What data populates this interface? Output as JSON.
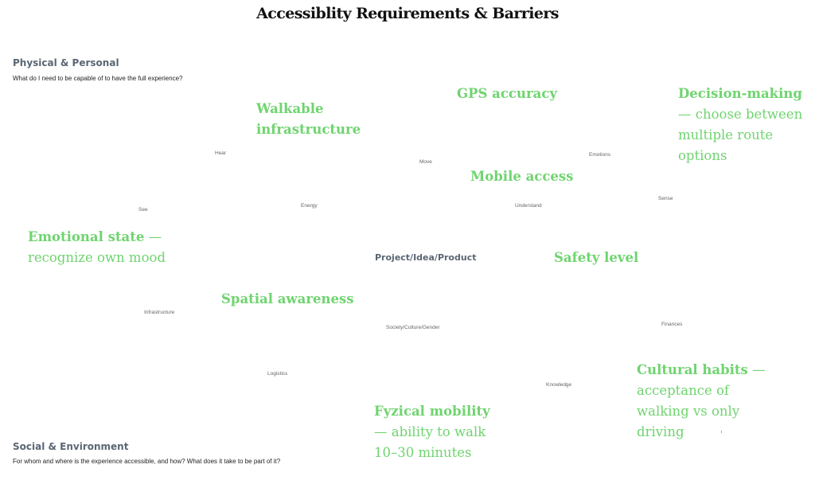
{
  "title": "Accessiblity Requirements & Barriers",
  "physical": {
    "heading": "Physical & Personal",
    "question": "What do I need to be capable of to have the full experience?"
  },
  "social": {
    "heading": "Social & Environment",
    "question": "For whom and where is the experience accessible, and how? What does it take to be part of it?"
  },
  "center": "Project/Idea/Product",
  "dimensions": {
    "hear": "Hear",
    "move": "Move",
    "emotions": "Emotions",
    "see": "See",
    "energy": "Energy",
    "understand": "Understand",
    "sense": "Sense",
    "infrastructure": "Infrastructure",
    "society": "Society/Culture/Gender",
    "finances": "Finances",
    "logistics": "Logistics",
    "knowledge": "Knowledge"
  },
  "notes": {
    "walkable": {
      "bold": "Walkable infrastructure",
      "rest": ""
    },
    "gps": {
      "bold": "GPS accuracy",
      "rest": ""
    },
    "decision": {
      "bold": "Decision-making",
      "rest": "— choose between multiple route options"
    },
    "mobile": {
      "bold": "Mobile access",
      "rest": ""
    },
    "emotional": {
      "bold": "Emotional state",
      "rest": "— recognize own mood"
    },
    "safety": {
      "bold": "Safety level",
      "rest": ""
    },
    "spatial": {
      "bold": "Spatial awareness",
      "rest": ""
    },
    "cultural": {
      "bold": "Cultural habits",
      "rest": "— acceptance of walking vs only driving"
    },
    "fyzical": {
      "bold": "Fyzical mobility",
      "rest": "— ability to walk 10–30 minutes"
    }
  }
}
